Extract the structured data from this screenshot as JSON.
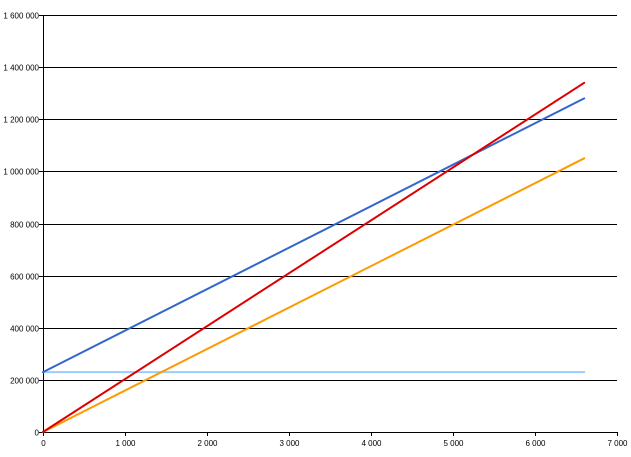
{
  "chart_data": {
    "type": "line",
    "title": "",
    "xlabel": "",
    "ylabel": "",
    "xlim": [
      0,
      7000
    ],
    "ylim": [
      0,
      1600000
    ],
    "x_ticks": [
      0,
      1000,
      2000,
      3000,
      4000,
      5000,
      6000,
      7000
    ],
    "x_tick_labels": [
      "0",
      "1 000",
      "2 000",
      "3 000",
      "4 000",
      "5 000",
      "6 000",
      "7 000"
    ],
    "y_ticks": [
      0,
      200000,
      400000,
      600000,
      800000,
      1000000,
      1200000,
      1400000,
      1600000
    ],
    "y_tick_labels": [
      "0",
      "200 000",
      "400 000",
      "600 000",
      "800 000",
      "1 000 000",
      "1 200 000",
      "1 400 000",
      "1 600 000"
    ],
    "grid": "horizontal",
    "legend": "none",
    "series": [
      {
        "color": "#99ccff",
        "x": [
          0,
          6600
        ],
        "y": [
          230000,
          230000
        ]
      },
      {
        "color": "#3366cc",
        "x": [
          0,
          6600
        ],
        "y": [
          230000,
          1280000
        ]
      },
      {
        "color": "#ff9900",
        "x": [
          0,
          6600
        ],
        "y": [
          0,
          1050000
        ]
      },
      {
        "color": "#dd0000",
        "x": [
          0,
          6600
        ],
        "y": [
          0,
          1340000
        ]
      }
    ]
  }
}
